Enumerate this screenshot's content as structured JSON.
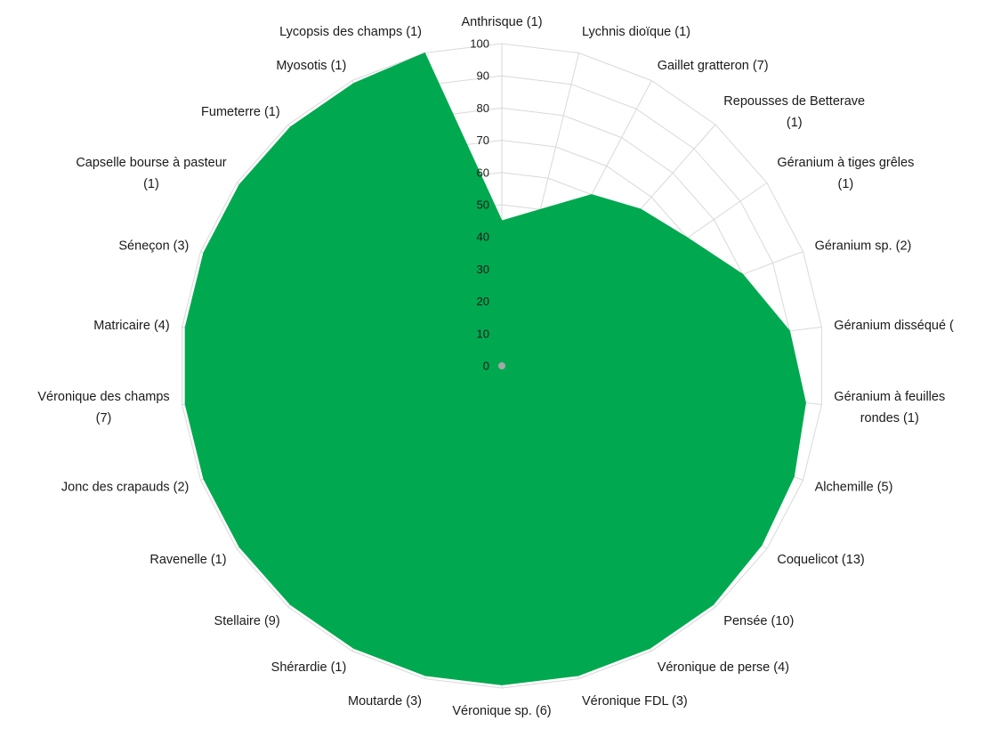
{
  "chart_data": {
    "type": "radar",
    "title": "",
    "rlim": [
      0,
      100
    ],
    "ticks": [
      0,
      10,
      20,
      30,
      40,
      50,
      60,
      70,
      80,
      90,
      100
    ],
    "grid": true,
    "legend": "none",
    "fill_color": "#00a94f",
    "grid_color": "#d9d9d9",
    "categories": [
      "Anthrisque (1)",
      "Lychnis dioïque (1)",
      "Gaillet gratteron (7)",
      "Repousses de Betterave (1)",
      "Géranium à tiges grêles (1)",
      "Géranium sp. (2)",
      "Géranium disséqué (",
      "Géranium à feuilles rondes (1)",
      "Alchemille (5)",
      "Coquelicot (13)",
      "Pensée (10)",
      "Véronique de perse (4)",
      "Véronique FDL (3)",
      "Véronique sp. (6)",
      "Moutarde (3)",
      "Shérardie (1)",
      "Stellaire (9)",
      "Ravenelle (1)",
      "Jonc des crapauds (2)",
      "Véronique des champs (7)",
      "Matricaire (4)",
      "Séneçon (3)",
      "Capselle bourse à pasteur (1)",
      "Fumeterre (1)",
      "Myosotis (1)",
      "Lycopsis des champs (1)"
    ],
    "series": [
      {
        "values": [
          45,
          50,
          60,
          65,
          70,
          80,
          90,
          95,
          97,
          98,
          99,
          99,
          99,
          99,
          99,
          99,
          99,
          99,
          99,
          99,
          99,
          99,
          99,
          99,
          99,
          100
        ]
      }
    ]
  }
}
